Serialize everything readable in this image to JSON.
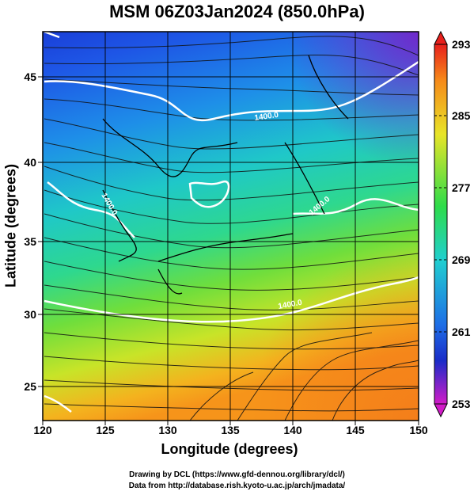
{
  "title": "MSM 06Z03Jan2024 (850.0hPa)",
  "xaxis": {
    "label": "Longitude (degrees)",
    "ticks": [
      "120",
      "125",
      "130",
      "135",
      "140",
      "145",
      "150"
    ]
  },
  "yaxis": {
    "label": "Latitude  (degrees)",
    "ticks": [
      "45",
      "40",
      "35",
      "30",
      "25"
    ]
  },
  "colorbar": {
    "ticks": [
      "293",
      "285",
      "277",
      "269",
      "261",
      "253"
    ],
    "min": 253,
    "max": 293
  },
  "contour_labels": [
    "1400.0",
    "1400.0",
    "1400.0",
    "1400.0"
  ],
  "credits": {
    "line1": "Drawing by DCL (https://www.gfd-dennou.org/library/dcl/)",
    "line2": "Data from http://database.rish.kyoto-u.ac.jp/arch/jmadata/"
  },
  "chart_data": {
    "type": "heatmap",
    "title": "MSM 06Z03Jan2024 (850.0hPa)",
    "xlabel": "Longitude (degrees)",
    "ylabel": "Latitude  (degrees)",
    "xlim": [
      120,
      150
    ],
    "ylim": [
      22.4,
      47.6
    ],
    "colorbar_range": [
      253,
      293
    ],
    "colorbar_ticks": [
      253,
      261,
      269,
      277,
      285,
      293
    ],
    "overlays": [
      "streamlines",
      "white contour lines labeled 1400.0",
      "coastlines",
      "grid"
    ],
    "grid": true
  }
}
